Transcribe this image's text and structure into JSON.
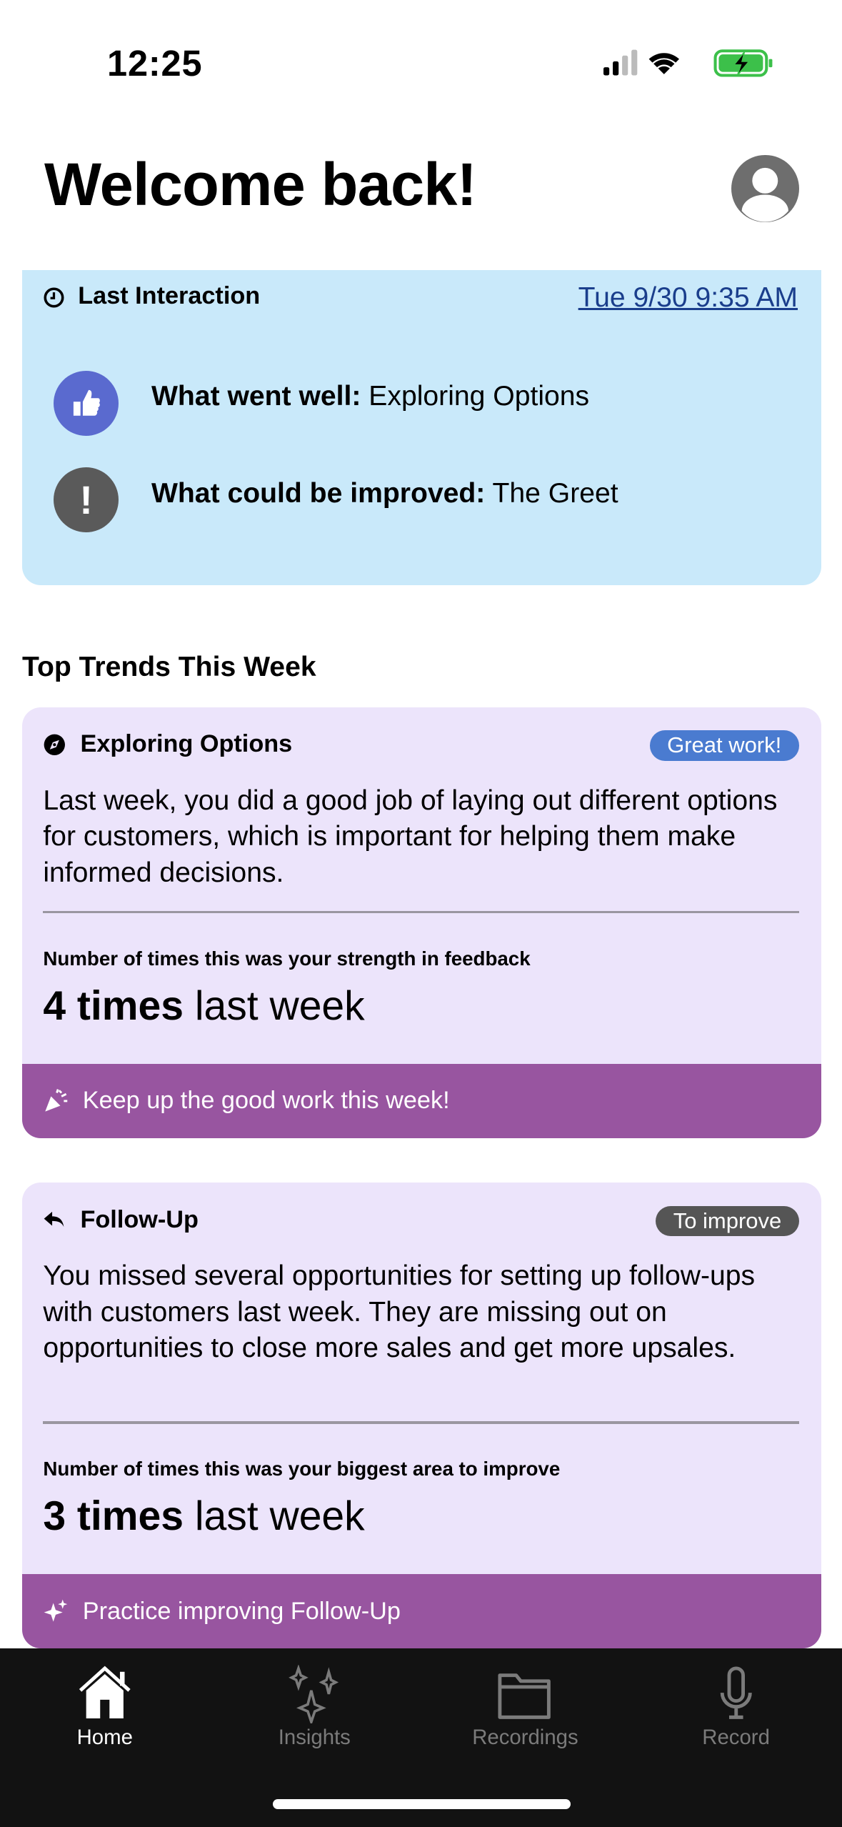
{
  "status_bar": {
    "time": "12:25",
    "signal": "cellular-2-of-4",
    "wifi": "wifi-icon",
    "battery": "charging"
  },
  "header": {
    "title": "Welcome back!",
    "avatar_icon": "person-circle-icon"
  },
  "last_interaction": {
    "title": "Last Interaction",
    "date": "Tue 9/30 9:35 AM",
    "went_well_label": "What went well:",
    "went_well_value": "Exploring Options",
    "improve_label": "What could be improved:",
    "improve_value": "The Greet"
  },
  "trends": {
    "title": "Top Trends This Week",
    "cards": [
      {
        "title": "Exploring Options",
        "icon": "compass-icon",
        "badge": "Great work!",
        "badge_color": "#4a7bd0",
        "body": "Last week, you did a good job of laying out different options for customers, which is important for helping them make informed decisions.",
        "metric_label": "Number of times this was your strength in feedback",
        "count": "4 times",
        "count_suffix": "last week",
        "footer": "Keep up the good work this week!",
        "footer_icon": "party-popper-icon"
      },
      {
        "title": "Follow-Up",
        "icon": "reply-arrow-icon",
        "badge": "To improve",
        "badge_color": "#555555",
        "body": "You missed several opportunities for setting up follow-ups with customers last week. They are missing out on opportunities to close more sales and get more upsales.",
        "metric_label": "Number of times this was your biggest area to improve",
        "count": "3 times",
        "count_suffix": "last week",
        "footer": "Practice improving Follow-Up",
        "footer_icon": "sparkles-icon"
      }
    ]
  },
  "tabs": [
    {
      "label": "Home",
      "active": true
    },
    {
      "label": "Insights"
    },
    {
      "label": "Recordings"
    },
    {
      "label": "Record"
    }
  ],
  "colors": {
    "last_interaction_bg": "#c9e9fa",
    "card_bg": "#ece4fb",
    "footer_bg": "#9855a0",
    "link": "#1a3e8c",
    "thumb_circle": "#5a6acf",
    "alert_circle": "#5a5a5a"
  }
}
